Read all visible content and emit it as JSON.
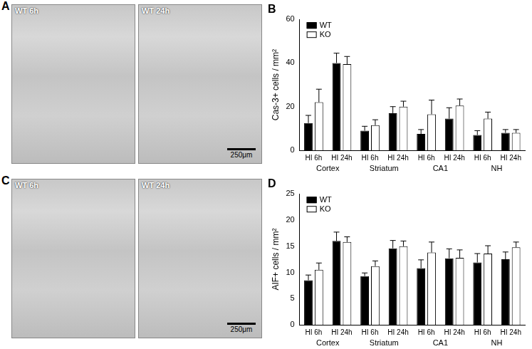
{
  "chart_data": [
    {
      "type": "bar",
      "title": "B",
      "y_label": "Cas-3+ cells / mm²",
      "categories": [
        "HI 6h",
        "HI 24h",
        "HI 6h",
        "HI 24h",
        "HI 6h",
        "HI 24h",
        "HI 6h",
        "HI 24h"
      ],
      "groups": [
        "Cortex",
        "Striatum",
        "CA1",
        "NH"
      ],
      "series": [
        {
          "name": "WT",
          "color": "#000000",
          "values": [
            12.5,
            40,
            9,
            17,
            7.5,
            14.5,
            7,
            8
          ],
          "errors": [
            3.5,
            4.5,
            2,
            3,
            2,
            5,
            2,
            1.5
          ]
        },
        {
          "name": "KO",
          "color": "#ffffff",
          "values": [
            22,
            39.5,
            11.5,
            20,
            16.5,
            20.5,
            14.5,
            8
          ],
          "errors": [
            6,
            3.5,
            2.5,
            2.5,
            6.5,
            3,
            3,
            1.5
          ]
        }
      ],
      "ylim": [
        0,
        60
      ],
      "yticks": [
        0,
        20,
        40,
        60
      ],
      "grid": false,
      "legend": "upper left"
    },
    {
      "type": "bar",
      "title": "D",
      "y_label": "AIF+ cells / mm²",
      "categories": [
        "HI 6h",
        "HI 24h",
        "HI 6h",
        "HI 24h",
        "HI 6h",
        "HI 24h",
        "HI 6h",
        "HI 24h"
      ],
      "groups": [
        "Cortex",
        "Striatum",
        "CA1",
        "NH"
      ],
      "series": [
        {
          "name": "WT",
          "color": "#000000",
          "values": [
            8.5,
            16,
            9.3,
            14.6,
            10.8,
            12.7,
            11.9,
            12.5
          ],
          "errors": [
            1,
            1.7,
            0.6,
            1.5,
            1.6,
            1.8,
            1.7,
            1.4
          ]
        },
        {
          "name": "KO",
          "color": "#ffffff",
          "values": [
            10.5,
            15.8,
            11.2,
            15,
            13.8,
            12.8,
            13.6,
            14.8
          ],
          "errors": [
            1.3,
            1,
            1,
            1,
            2,
            1.5,
            1.5,
            1
          ]
        }
      ],
      "ylim": [
        0,
        25
      ],
      "yticks": [
        0,
        5,
        10,
        15,
        20,
        25
      ],
      "grid": false,
      "legend": "upper left"
    }
  ],
  "images": [
    {
      "panel": "A",
      "frames": [
        {
          "label": "WT 6h"
        },
        {
          "label": "WT 24h",
          "scale_bar": "250μm"
        }
      ]
    },
    {
      "panel": "C",
      "frames": [
        {
          "label": "WT 6h"
        },
        {
          "label": "WT 24h",
          "scale_bar": "250μm"
        }
      ]
    }
  ]
}
